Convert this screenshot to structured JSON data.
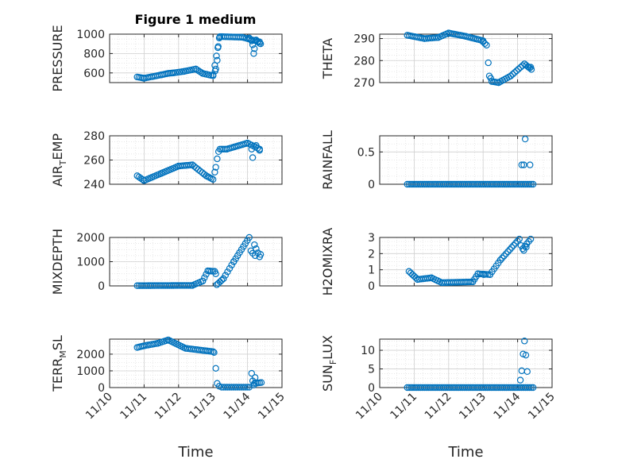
{
  "figure": {
    "title": "Figure 1 medium"
  },
  "style": {
    "marker_color": "#0072bd",
    "axis_color": "#262626",
    "grid_color": "#dfdfdf"
  },
  "chart_data": [
    {
      "type": "scatter",
      "id": "pressure",
      "ylabel": "PRESSURE",
      "ylabel_main": "PRESSURE",
      "ylabel_sub": "",
      "ylabel_tail": "",
      "xlim": [
        0,
        5
      ],
      "ylim": [
        500,
        1000
      ],
      "yticks": [
        600,
        800,
        1000
      ],
      "ytick_labels": [
        "600",
        "800",
        "1000"
      ],
      "xticks": [
        0,
        1,
        2,
        3,
        4,
        5
      ],
      "xtick_labels": [
        "11/10",
        "11/11",
        "11/12",
        "11/13",
        "11/14",
        "11/15"
      ],
      "grid": true,
      "minor_grid": true,
      "xlabel": "",
      "marker": "open-circle",
      "segments": [
        {
          "x0": 0.8,
          "x1": 1.0,
          "y0": 558,
          "y1": 545
        },
        {
          "x0": 1.0,
          "x1": 1.5,
          "y0": 545,
          "y1": 580
        },
        {
          "x0": 1.5,
          "x1": 1.7,
          "y0": 580,
          "y1": 595
        },
        {
          "x0": 1.7,
          "x1": 1.85,
          "y0": 595,
          "y1": 600
        },
        {
          "x0": 1.85,
          "x1": 2.15,
          "y0": 600,
          "y1": 615
        },
        {
          "x0": 2.15,
          "x1": 2.5,
          "y0": 615,
          "y1": 640
        },
        {
          "x0": 2.5,
          "x1": 2.7,
          "y0": 640,
          "y1": 595
        },
        {
          "x0": 2.7,
          "x1": 3.0,
          "y0": 595,
          "y1": 570
        },
        {
          "x0": 3.0,
          "x1": 3.2,
          "y0": 580,
          "y1": 970
        },
        {
          "x0": 3.2,
          "x1": 3.85,
          "y0": 975,
          "y1": 968
        },
        {
          "x0": 3.85,
          "x1": 4.35,
          "y0": 968,
          "y1": 920
        }
      ],
      "points": [
        [
          3.06,
          620
        ],
        [
          3.08,
          640
        ],
        [
          3.12,
          730
        ],
        [
          3.14,
          860
        ],
        [
          3.18,
          960
        ],
        [
          4.05,
          960
        ],
        [
          4.12,
          930
        ],
        [
          4.15,
          890
        ],
        [
          4.18,
          800
        ],
        [
          4.2,
          850
        ],
        [
          4.25,
          940
        ],
        [
          4.3,
          920
        ],
        [
          4.35,
          905
        ],
        [
          4.38,
          900
        ]
      ]
    },
    {
      "type": "scatter",
      "id": "theta",
      "ylabel": "THETA",
      "ylabel_main": "THETA",
      "ylabel_sub": "",
      "ylabel_tail": "",
      "xlim": [
        0,
        5
      ],
      "ylim": [
        270,
        292
      ],
      "yticks": [
        270,
        280,
        290
      ],
      "ytick_labels": [
        "270",
        "280",
        "290"
      ],
      "xticks": [
        0,
        1,
        2,
        3,
        4,
        5
      ],
      "xtick_labels": [
        "11/10",
        "11/11",
        "11/12",
        "11/13",
        "11/14",
        "11/15"
      ],
      "grid": true,
      "minor_grid": true,
      "xlabel": "",
      "marker": "open-circle",
      "segments": [
        {
          "x0": 0.8,
          "x1": 1.3,
          "y0": 291.5,
          "y1": 290
        },
        {
          "x0": 1.3,
          "x1": 1.7,
          "y0": 290,
          "y1": 290.5
        },
        {
          "x0": 1.7,
          "x1": 2.0,
          "y0": 290.5,
          "y1": 292.5
        },
        {
          "x0": 2.0,
          "x1": 2.5,
          "y0": 292.5,
          "y1": 291
        },
        {
          "x0": 2.5,
          "x1": 3.0,
          "y0": 291,
          "y1": 289
        },
        {
          "x0": 3.0,
          "x1": 3.1,
          "y0": 288.5,
          "y1": 287
        },
        {
          "x0": 3.25,
          "x1": 3.45,
          "y0": 270.5,
          "y1": 270
        },
        {
          "x0": 3.45,
          "x1": 3.8,
          "y0": 270,
          "y1": 273
        },
        {
          "x0": 3.8,
          "x1": 4.2,
          "y0": 273,
          "y1": 278.5
        },
        {
          "x0": 4.2,
          "x1": 4.4,
          "y0": 278.5,
          "y1": 276
        }
      ],
      "points": [
        [
          3.15,
          279
        ],
        [
          3.18,
          273
        ],
        [
          3.22,
          272
        ],
        [
          4.32,
          277
        ],
        [
          4.38,
          277
        ]
      ]
    },
    {
      "type": "scatter",
      "id": "air_temp",
      "ylabel": "AIR_TEMP",
      "ylabel_main": "AIR",
      "ylabel_sub": "T",
      "ylabel_tail": "EMP",
      "xlim": [
        0,
        5
      ],
      "ylim": [
        240,
        280
      ],
      "yticks": [
        240,
        260,
        280
      ],
      "ytick_labels": [
        "240",
        "260",
        "280"
      ],
      "xticks": [
        0,
        1,
        2,
        3,
        4,
        5
      ],
      "xtick_labels": [
        "11/10",
        "11/11",
        "11/12",
        "11/13",
        "11/14",
        "11/15"
      ],
      "grid": true,
      "minor_grid": true,
      "xlabel": "",
      "marker": "open-circle",
      "segments": [
        {
          "x0": 0.8,
          "x1": 1.0,
          "y0": 247,
          "y1": 243
        },
        {
          "x0": 1.0,
          "x1": 1.5,
          "y0": 243,
          "y1": 249
        },
        {
          "x0": 1.5,
          "x1": 2.0,
          "y0": 249,
          "y1": 255
        },
        {
          "x0": 2.0,
          "x1": 2.4,
          "y0": 255,
          "y1": 256
        },
        {
          "x0": 2.4,
          "x1": 2.8,
          "y0": 256,
          "y1": 247
        },
        {
          "x0": 2.8,
          "x1": 3.0,
          "y0": 247,
          "y1": 244
        },
        {
          "x0": 3.2,
          "x1": 3.4,
          "y0": 269,
          "y1": 269
        },
        {
          "x0": 3.4,
          "x1": 4.0,
          "y0": 269,
          "y1": 274
        },
        {
          "x0": 4.0,
          "x1": 4.35,
          "y0": 274,
          "y1": 269
        }
      ],
      "points": [
        [
          3.05,
          250
        ],
        [
          3.08,
          254
        ],
        [
          3.12,
          261
        ],
        [
          3.16,
          267
        ],
        [
          4.12,
          269
        ],
        [
          4.15,
          262
        ],
        [
          4.25,
          272
        ],
        [
          4.35,
          268
        ]
      ]
    },
    {
      "type": "scatter",
      "id": "rainfall",
      "ylabel": "RAINFALL",
      "ylabel_main": "RAINFALL",
      "ylabel_sub": "",
      "ylabel_tail": "",
      "xlim": [
        0,
        5
      ],
      "ylim": [
        0,
        0.75
      ],
      "yticks": [
        0,
        0.5
      ],
      "ytick_labels": [
        "0",
        "0.5"
      ],
      "xticks": [
        0,
        1,
        2,
        3,
        4,
        5
      ],
      "xtick_labels": [
        "11/10",
        "11/11",
        "11/12",
        "11/13",
        "11/14",
        "11/15"
      ],
      "grid": true,
      "minor_grid": true,
      "xlabel": "",
      "marker": "open-circle",
      "segments": [
        {
          "x0": 0.8,
          "x1": 4.45,
          "y0": 0,
          "y1": 0
        }
      ],
      "points": [
        [
          4.12,
          0.3
        ],
        [
          4.18,
          0.3
        ],
        [
          4.22,
          0.7
        ],
        [
          4.36,
          0.3
        ]
      ]
    },
    {
      "type": "scatter",
      "id": "mixdepth",
      "ylabel": "MIXDEPTH",
      "ylabel_main": "MIXDEPTH",
      "ylabel_sub": "",
      "ylabel_tail": "",
      "xlim": [
        0,
        5
      ],
      "ylim": [
        0,
        2000
      ],
      "yticks": [
        0,
        1000,
        2000
      ],
      "ytick_labels": [
        "0",
        "1000",
        "2000"
      ],
      "xticks": [
        0,
        1,
        2,
        3,
        4,
        5
      ],
      "xtick_labels": [
        "11/10",
        "11/11",
        "11/12",
        "11/13",
        "11/14",
        "11/15"
      ],
      "grid": true,
      "minor_grid": true,
      "xlabel": "",
      "marker": "open-circle",
      "segments": [
        {
          "x0": 0.8,
          "x1": 2.4,
          "y0": 10,
          "y1": 20
        },
        {
          "x0": 2.4,
          "x1": 2.7,
          "y0": 20,
          "y1": 200
        },
        {
          "x0": 2.7,
          "x1": 2.85,
          "y0": 200,
          "y1": 620
        },
        {
          "x0": 2.85,
          "x1": 3.05,
          "y0": 620,
          "y1": 600
        },
        {
          "x0": 3.15,
          "x1": 3.3,
          "y0": 100,
          "y1": 300
        },
        {
          "x0": 3.3,
          "x1": 3.6,
          "y0": 300,
          "y1": 1000
        },
        {
          "x0": 3.6,
          "x1": 4.05,
          "y0": 1000,
          "y1": 2000
        },
        {
          "x0": 4.2,
          "x1": 4.35,
          "y0": 1700,
          "y1": 1200
        }
      ],
      "points": [
        [
          3.08,
          500
        ],
        [
          3.11,
          50
        ],
        [
          4.1,
          1450
        ],
        [
          4.15,
          1350
        ],
        [
          4.22,
          1250
        ],
        [
          4.38,
          1300
        ]
      ]
    },
    {
      "type": "scatter",
      "id": "h2omixra",
      "ylabel": "H2OMIXRA",
      "ylabel_main": "H2OMIXRA",
      "ylabel_sub": "",
      "ylabel_tail": "",
      "xlim": [
        0,
        5
      ],
      "ylim": [
        0,
        3
      ],
      "yticks": [
        0,
        1,
        2,
        3
      ],
      "ytick_labels": [
        "0",
        "1",
        "2",
        "3"
      ],
      "xticks": [
        0,
        1,
        2,
        3,
        4,
        5
      ],
      "xtick_labels": [
        "11/10",
        "11/11",
        "11/12",
        "11/13",
        "11/14",
        "11/15"
      ],
      "grid": true,
      "minor_grid": true,
      "xlabel": "",
      "marker": "open-circle",
      "segments": [
        {
          "x0": 0.85,
          "x1": 1.1,
          "y0": 0.9,
          "y1": 0.4
        },
        {
          "x0": 1.1,
          "x1": 1.5,
          "y0": 0.4,
          "y1": 0.5
        },
        {
          "x0": 1.5,
          "x1": 1.8,
          "y0": 0.5,
          "y1": 0.2
        },
        {
          "x0": 1.8,
          "x1": 2.7,
          "y0": 0.2,
          "y1": 0.25
        },
        {
          "x0": 2.7,
          "x1": 2.85,
          "y0": 0.25,
          "y1": 0.75
        },
        {
          "x0": 2.85,
          "x1": 3.2,
          "y0": 0.75,
          "y1": 0.7
        },
        {
          "x0": 3.2,
          "x1": 3.5,
          "y0": 0.7,
          "y1": 1.6
        },
        {
          "x0": 3.5,
          "x1": 4.05,
          "y0": 1.6,
          "y1": 2.9
        },
        {
          "x0": 4.15,
          "x1": 4.38,
          "y0": 2.3,
          "y1": 2.9
        }
      ],
      "points": [
        [
          3.02,
          0.7
        ],
        [
          4.1,
          2.5
        ],
        [
          4.18,
          2.2
        ],
        [
          4.25,
          2.4
        ]
      ]
    },
    {
      "type": "scatter",
      "id": "terr_msl",
      "ylabel": "TERR_MSL",
      "ylabel_main": "TERR",
      "ylabel_sub": "M",
      "ylabel_tail": "SL",
      "xlim": [
        0,
        5
      ],
      "ylim": [
        0,
        2900
      ],
      "yticks": [
        0,
        1000,
        2000
      ],
      "ytick_labels": [
        "0",
        "1000",
        "2000"
      ],
      "xticks": [
        0,
        1,
        2,
        3,
        4,
        5
      ],
      "xtick_labels": [
        "11/10",
        "11/11",
        "11/12",
        "11/13",
        "11/14",
        "11/15"
      ],
      "grid": true,
      "minor_grid": true,
      "xlabel": "Time",
      "marker": "open-circle",
      "segments": [
        {
          "x0": 0.8,
          "x1": 1.0,
          "y0": 2400,
          "y1": 2500
        },
        {
          "x0": 1.0,
          "x1": 1.4,
          "y0": 2500,
          "y1": 2650
        },
        {
          "x0": 1.4,
          "x1": 1.7,
          "y0": 2650,
          "y1": 2850
        },
        {
          "x0": 1.7,
          "x1": 2.2,
          "y0": 2850,
          "y1": 2350
        },
        {
          "x0": 2.2,
          "x1": 3.0,
          "y0": 2350,
          "y1": 2150
        },
        {
          "x0": 3.25,
          "x1": 4.05,
          "y0": 20,
          "y1": 20
        },
        {
          "x0": 4.2,
          "x1": 4.4,
          "y0": 250,
          "y1": 300
        }
      ],
      "points": [
        [
          3.03,
          2100
        ],
        [
          3.08,
          1150
        ],
        [
          3.12,
          250
        ],
        [
          3.18,
          80
        ],
        [
          4.12,
          850
        ],
        [
          4.15,
          400
        ],
        [
          4.18,
          150
        ],
        [
          4.22,
          600
        ]
      ]
    },
    {
      "type": "scatter",
      "id": "sun_flux",
      "ylabel": "SUN_FLUX",
      "ylabel_main": "SUN",
      "ylabel_sub": "F",
      "ylabel_tail": "LUX",
      "xlim": [
        0,
        5
      ],
      "ylim": [
        0,
        13
      ],
      "yticks": [
        0,
        5,
        10
      ],
      "ytick_labels": [
        "0",
        "5",
        "10"
      ],
      "xticks": [
        0,
        1,
        2,
        3,
        4,
        5
      ],
      "xtick_labels": [
        "11/10",
        "11/11",
        "11/12",
        "11/13",
        "11/14",
        "11/15"
      ],
      "grid": true,
      "minor_grid": true,
      "xlabel": "Time",
      "marker": "open-circle",
      "segments": [
        {
          "x0": 0.8,
          "x1": 4.45,
          "y0": 0,
          "y1": 0
        }
      ],
      "points": [
        [
          4.08,
          2.0
        ],
        [
          4.12,
          4.5
        ],
        [
          4.16,
          9.0
        ],
        [
          4.2,
          12.5
        ],
        [
          4.24,
          8.7
        ],
        [
          4.28,
          4.3
        ]
      ]
    }
  ]
}
